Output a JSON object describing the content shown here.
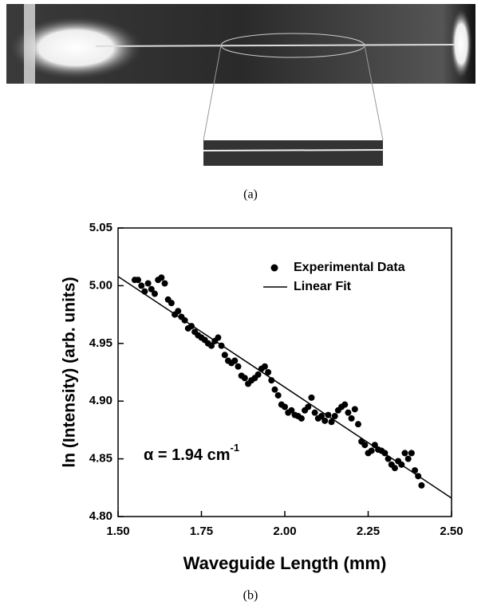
{
  "figure": {
    "panel_a_label": "(a)",
    "panel_b_label": "(b)"
  },
  "chart_data": {
    "type": "scatter",
    "xlabel": "Waveguide Length (mm)",
    "ylabel": "ln (Intensity) (arb. units)",
    "annotation": {
      "text": "α = 1.94 cm",
      "superscript": "-1"
    },
    "xlim": [
      1.5,
      2.5
    ],
    "ylim": [
      4.8,
      5.05
    ],
    "xticks": [
      {
        "value": 1.5,
        "label": "1.50"
      },
      {
        "value": 1.75,
        "label": "1.75"
      },
      {
        "value": 2.0,
        "label": "2.00"
      },
      {
        "value": 2.25,
        "label": "2.25"
      },
      {
        "value": 2.5,
        "label": "2.50"
      }
    ],
    "yticks": [
      {
        "value": 4.8,
        "label": "4.80"
      },
      {
        "value": 4.85,
        "label": "4.85"
      },
      {
        "value": 4.9,
        "label": "4.90"
      },
      {
        "value": 4.95,
        "label": "4.95"
      },
      {
        "value": 5.0,
        "label": "5.00"
      },
      {
        "value": 5.05,
        "label": "5.05"
      }
    ],
    "legend": "upper right",
    "series": [
      {
        "name": "Experimental Data",
        "type": "scatter",
        "color": "#000000",
        "x": [
          1.55,
          1.56,
          1.57,
          1.58,
          1.59,
          1.6,
          1.61,
          1.62,
          1.63,
          1.64,
          1.65,
          1.66,
          1.67,
          1.68,
          1.69,
          1.7,
          1.71,
          1.72,
          1.73,
          1.74,
          1.75,
          1.76,
          1.77,
          1.78,
          1.79,
          1.8,
          1.81,
          1.82,
          1.83,
          1.84,
          1.85,
          1.86,
          1.87,
          1.88,
          1.89,
          1.9,
          1.91,
          1.92,
          1.93,
          1.94,
          1.95,
          1.96,
          1.97,
          1.98,
          1.99,
          2.0,
          2.01,
          2.02,
          2.03,
          2.04,
          2.05,
          2.06,
          2.07,
          2.08,
          2.09,
          2.1,
          2.11,
          2.12,
          2.13,
          2.14,
          2.15,
          2.16,
          2.17,
          2.18,
          2.19,
          2.2,
          2.21,
          2.22,
          2.23,
          2.24,
          2.25,
          2.26,
          2.27,
          2.28,
          2.29,
          2.3,
          2.31,
          2.32,
          2.33,
          2.34,
          2.35,
          2.36,
          2.37,
          2.38,
          2.39,
          2.4,
          2.41
        ],
        "values": [
          5.005,
          5.005,
          5.0,
          4.995,
          5.002,
          4.997,
          4.993,
          5.005,
          5.007,
          5.002,
          4.988,
          4.985,
          4.975,
          4.978,
          4.973,
          4.97,
          4.963,
          4.965,
          4.96,
          4.957,
          4.955,
          4.953,
          4.95,
          4.948,
          4.952,
          4.955,
          4.948,
          4.94,
          4.935,
          4.933,
          4.935,
          4.93,
          4.922,
          4.92,
          4.915,
          4.918,
          4.92,
          4.923,
          4.928,
          4.93,
          4.925,
          4.918,
          4.91,
          4.905,
          4.897,
          4.895,
          4.89,
          4.892,
          4.888,
          4.887,
          4.885,
          4.892,
          4.895,
          4.903,
          4.89,
          4.885,
          4.887,
          4.883,
          4.888,
          4.882,
          4.887,
          4.892,
          4.895,
          4.897,
          4.89,
          4.885,
          4.893,
          4.88,
          4.865,
          4.862,
          4.855,
          4.857,
          4.862,
          4.858,
          4.857,
          4.855,
          4.85,
          4.845,
          4.842,
          4.848,
          4.845,
          4.855,
          4.85,
          4.855,
          4.84,
          4.835,
          4.827
        ]
      },
      {
        "name": "Linear Fit",
        "type": "line",
        "color": "#000000",
        "x": [
          1.5,
          2.5
        ],
        "values": [
          5.008,
          4.816
        ]
      }
    ]
  }
}
